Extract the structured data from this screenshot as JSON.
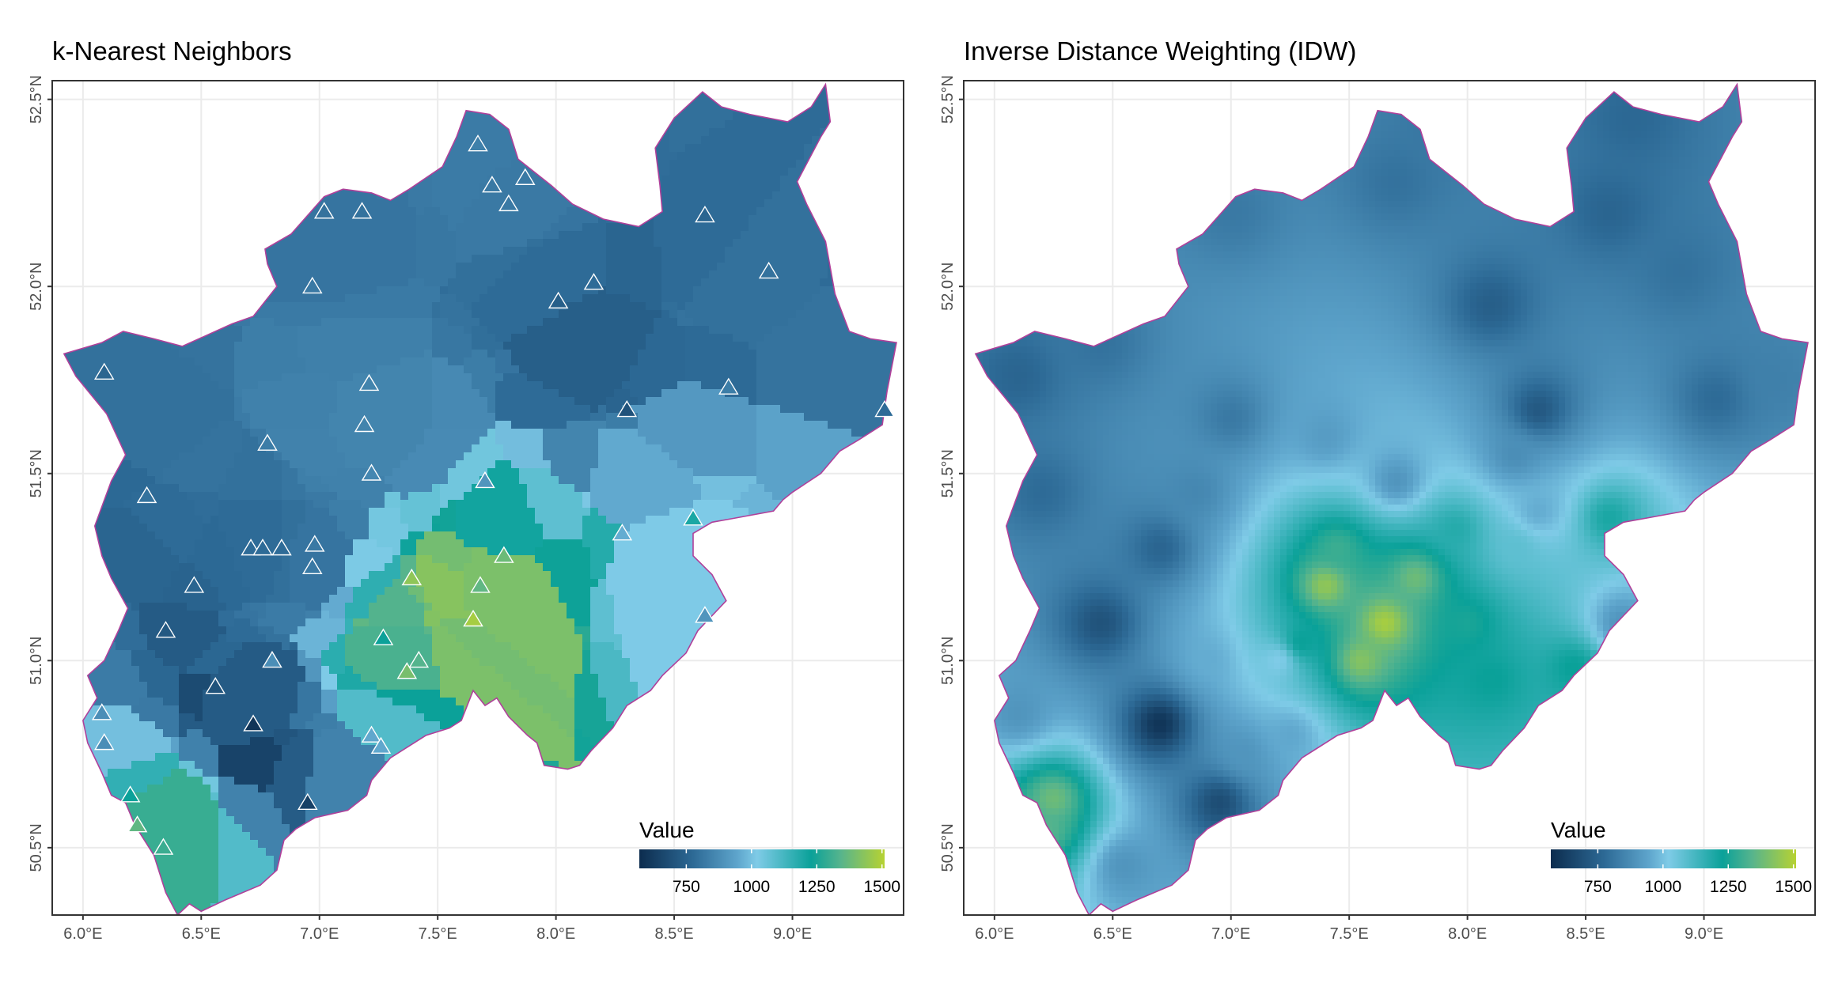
{
  "panels": [
    {
      "title": "k-Nearest Neighbors",
      "method": "knn",
      "show_stations": true
    },
    {
      "title": "Inverse Distance Weighting (IDW)",
      "method": "idw",
      "show_stations": false
    }
  ],
  "axes": {
    "lon_ticks": [
      "6.0°E",
      "6.5°E",
      "7.0°E",
      "7.5°E",
      "8.0°E",
      "8.5°E",
      "9.0°E"
    ],
    "lon_values": [
      6.0,
      6.5,
      7.0,
      7.5,
      8.0,
      8.5,
      9.0
    ],
    "lat_ticks": [
      "50.5°N",
      "51.0°N",
      "51.5°N",
      "52.0°N",
      "52.5°N"
    ],
    "lat_values": [
      50.5,
      51.0,
      51.5,
      52.0,
      52.5
    ],
    "lon_range": [
      5.87,
      9.47
    ],
    "lat_range": [
      50.32,
      52.55
    ]
  },
  "legend": {
    "title": "Value",
    "ticks": [
      "750",
      "1000",
      "1250",
      "1500"
    ],
    "tick_values": [
      750,
      1000,
      1250,
      1500
    ],
    "range": [
      570,
      1510
    ],
    "colors": [
      "#0c2c4e",
      "#2d6a96",
      "#5ea5cc",
      "#7fcbe7",
      "#0aa199",
      "#56b48d",
      "#b7d232"
    ]
  },
  "colors": {
    "boundary": "#b0409a",
    "grid": "#ebebeb",
    "frame": "#333333"
  }
}
